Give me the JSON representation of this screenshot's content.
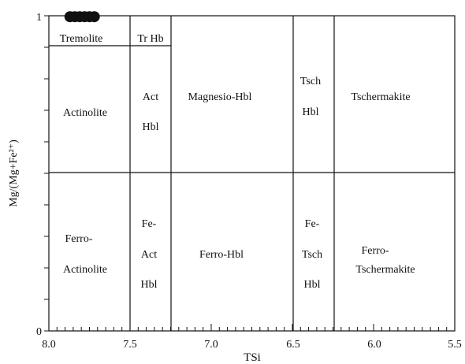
{
  "chart_data": {
    "type": "scatter",
    "xlabel": "TSi",
    "ylabel": "Mg/(Mg+Fe²⁺)",
    "xlim": [
      8.0,
      5.5
    ],
    "ylim": [
      0,
      1
    ],
    "x_ticks": [
      "8.0",
      "7.5",
      "7.0",
      "6.5",
      "6.0",
      "5.5"
    ],
    "y_ticks": [
      "0",
      "1"
    ],
    "boundaries_x": [
      7.5,
      7.25,
      6.5,
      6.25
    ],
    "boundary_y": 0.5,
    "tremolite_boundary_y": 0.9,
    "fields": {
      "tremolite": "Tremolite",
      "tr_hb": "Tr Hb",
      "actinolite": "Actinolite",
      "act_hbl": [
        "Act",
        "Hbl"
      ],
      "magnesio_hbl": "Magnesio-Hbl",
      "tsch_hbl": [
        "Tsch",
        "Hbl"
      ],
      "tschermakite": "Tschermakite",
      "ferro_actinolite": [
        "Ferro-",
        "Actinolite"
      ],
      "fe_act_hbl": [
        "Fe-",
        "Act",
        "Hbl"
      ],
      "ferro_hbl": "Ferro-Hbl",
      "fe_tsch_hbl": [
        "Fe-",
        "Tsch",
        "Hbl"
      ],
      "ferro_tschermakite": [
        "Ferro-",
        "Tschermakite"
      ]
    },
    "points": [
      {
        "x": 7.87,
        "y": 0.997
      },
      {
        "x": 7.84,
        "y": 0.997
      },
      {
        "x": 7.81,
        "y": 0.997
      },
      {
        "x": 7.78,
        "y": 0.997
      },
      {
        "x": 7.75,
        "y": 0.997
      },
      {
        "x": 7.72,
        "y": 0.997
      }
    ],
    "marker_color": "#111111"
  }
}
